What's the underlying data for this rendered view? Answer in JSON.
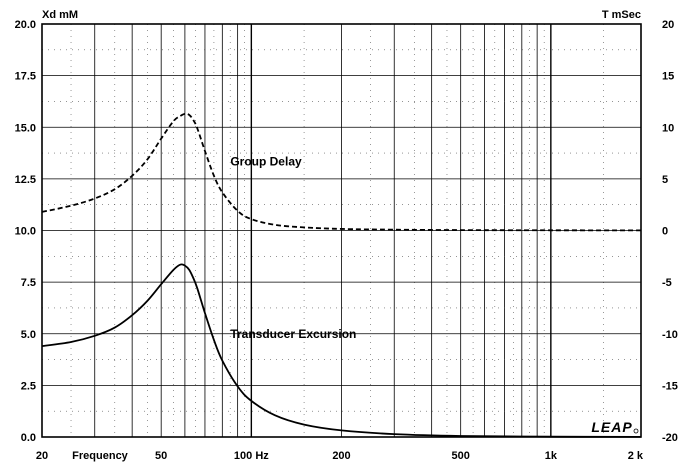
{
  "chart_data": {
    "type": "line",
    "x_scale": "log",
    "xlim": [
      20,
      2000
    ],
    "x_ticks": [
      {
        "value": 20,
        "label": "20"
      },
      {
        "value": 50,
        "label": "50"
      },
      {
        "value": 100,
        "label": "100 Hz"
      },
      {
        "value": 200,
        "label": "200"
      },
      {
        "value": 500,
        "label": "500"
      },
      {
        "value": 1000,
        "label": "1k"
      },
      {
        "value": 2000,
        "label": "2 k"
      }
    ],
    "xlabel": "Frequency",
    "ylabel_left": "Xd mM",
    "ylabel_right": "T mSec",
    "ylim_left": [
      0,
      20
    ],
    "ylim_right": [
      -20,
      20
    ],
    "y_ticks_left": [
      "0.0",
      "2.5",
      "5.0",
      "7.5",
      "10.0",
      "12.5",
      "15.0",
      "17.5",
      "20.0"
    ],
    "y_ticks_right": [
      "-20",
      "-15",
      "-10",
      "-5",
      "0",
      "5",
      "10",
      "15",
      "20"
    ],
    "grid": true,
    "logo": "LEAP",
    "series": [
      {
        "name": "Group Delay",
        "axis": "right",
        "style": "dashed",
        "label_freq": 80,
        "label_value": 6.7,
        "x": [
          20,
          25,
          30,
          35,
          40,
          45,
          50,
          55,
          58,
          60,
          62,
          64,
          66,
          70,
          75,
          80,
          90,
          100,
          120,
          150,
          200,
          300,
          500,
          1000,
          2000
        ],
        "y": [
          1.8,
          2.4,
          3.1,
          4.0,
          5.3,
          6.9,
          8.9,
          10.6,
          11.1,
          11.3,
          11.2,
          10.7,
          9.9,
          7.7,
          5.3,
          3.7,
          1.9,
          1.1,
          0.55,
          0.3,
          0.15,
          0.08,
          0.04,
          0.02,
          0.01
        ]
      },
      {
        "name": "Transducer Excursion",
        "axis": "left",
        "style": "solid",
        "label_freq": 80,
        "label_value": 5.0,
        "x": [
          20,
          25,
          30,
          35,
          40,
          45,
          50,
          55,
          58,
          60,
          62,
          64,
          66,
          70,
          75,
          80,
          90,
          100,
          120,
          150,
          200,
          300,
          500,
          1000,
          2000
        ],
        "y": [
          4.4,
          4.6,
          4.9,
          5.3,
          5.9,
          6.6,
          7.4,
          8.1,
          8.35,
          8.3,
          8.1,
          7.7,
          7.2,
          6.0,
          4.7,
          3.7,
          2.45,
          1.75,
          1.05,
          0.6,
          0.32,
          0.14,
          0.05,
          0.015,
          0.005
        ]
      }
    ]
  }
}
